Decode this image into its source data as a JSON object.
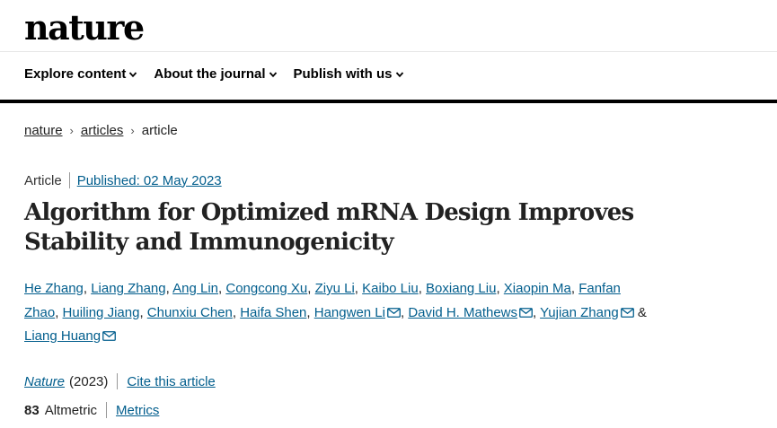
{
  "site": {
    "logo": "nature"
  },
  "nav": {
    "items": [
      {
        "label": "Explore content"
      },
      {
        "label": "About the journal"
      },
      {
        "label": "Publish with us"
      }
    ]
  },
  "breadcrumb": {
    "items": [
      "nature",
      "articles",
      "article"
    ]
  },
  "article": {
    "type": "Article",
    "published": "Published: 02 May 2023",
    "title_line1": "Algorithm for Optimized mRNA Design Improves",
    "title_line2": "Stability and Immunogenicity",
    "authors": [
      "He Zhang",
      "Liang Zhang",
      "Ang Lin",
      "Congcong Xu",
      "Ziyu Li",
      "Kaibo Liu",
      "Boxiang Liu",
      "Xiaopin Ma",
      "Fanfan",
      "Zhao",
      "Huiling Jiang",
      "Chunxiu Chen",
      "Haifa Shen",
      "Hangwen Li",
      "David H. Mathews",
      "Yujian Zhang",
      "Liang Huang"
    ],
    "journal": "Nature",
    "year": "(2023)",
    "cite_label": "Cite this article",
    "altmetric_score": "83",
    "altmetric_label": "Altmetric",
    "metrics_label": "Metrics"
  },
  "colors": {
    "link": "#025e8d",
    "rule": "#000000",
    "text": "#222222"
  }
}
